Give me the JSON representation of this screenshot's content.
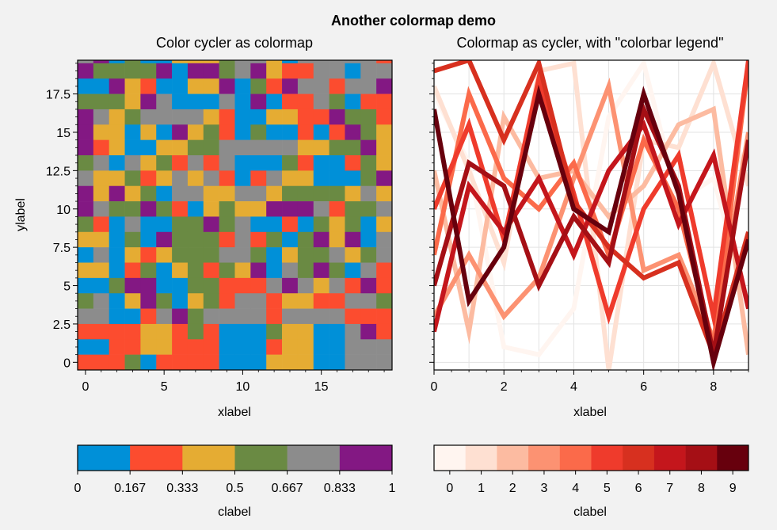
{
  "suptitle": "Another colormap demo",
  "chart_data": [
    {
      "type": "heatmap",
      "title": "Color cycler as colormap",
      "xlabel": "xlabel",
      "ylabel": "ylabel",
      "x_ticks": [
        "0",
        "5",
        "10",
        "15"
      ],
      "y_ticks": [
        "0",
        "2.5",
        "5",
        "7.5",
        "10",
        "12.5",
        "15",
        "17.5"
      ],
      "xlim": [
        -0.5,
        19.5
      ],
      "ylim": [
        -0.5,
        19.7
      ],
      "palette": [
        "#0090d8",
        "#fc4c2f",
        "#e5ac33",
        "#6a8a43",
        "#8c8c8c",
        "#831883"
      ],
      "values": [
        [
          0,
          0,
          1,
          0,
          0,
          0,
          5,
          0,
          3,
          5,
          3,
          5,
          2,
          4,
          4,
          1,
          5,
          0,
          0,
          0
        ],
        [
          0,
          0,
          1,
          1,
          1,
          5,
          1,
          3,
          3,
          4,
          1,
          0,
          1,
          3,
          3,
          3,
          3,
          4,
          4,
          1
        ],
        [
          5,
          0,
          1,
          1,
          1,
          2,
          1,
          4,
          1,
          2,
          1,
          3,
          3,
          3,
          3,
          3,
          4,
          3,
          5,
          3
        ],
        [
          2,
          2,
          2,
          0,
          0,
          0,
          0,
          0,
          2,
          2,
          1,
          4,
          5,
          4,
          2,
          1,
          1,
          3,
          3,
          4
        ],
        [
          4,
          1,
          0,
          0,
          5,
          1,
          0,
          0,
          2,
          1,
          4,
          4,
          1,
          4,
          2,
          2,
          0,
          3,
          3,
          2
        ],
        [
          4,
          5,
          0,
          3,
          0,
          0,
          2,
          2,
          2,
          3,
          4,
          4,
          2,
          0,
          4,
          4,
          4,
          4,
          4,
          1
        ],
        [
          5,
          3,
          3,
          3,
          3,
          5,
          0,
          5,
          5,
          3,
          4,
          5,
          2,
          1,
          1,
          4,
          4,
          0,
          4,
          4
        ],
        [
          0,
          0,
          5,
          2,
          1,
          0,
          0,
          2,
          2,
          5,
          0,
          3,
          1,
          5,
          4,
          4,
          1,
          4,
          4,
          5
        ],
        [
          3,
          3,
          3,
          2,
          5,
          4,
          0,
          0,
          0,
          4,
          0,
          5,
          0,
          1,
          1,
          4,
          3,
          0,
          1,
          1
        ],
        [
          5,
          4,
          2,
          3,
          4,
          4,
          4,
          4,
          2,
          1,
          0,
          0,
          2,
          2,
          1,
          1,
          5,
          3,
          3,
          1
        ],
        [
          5,
          2,
          2,
          0,
          2,
          0,
          5,
          2,
          3,
          1,
          0,
          3,
          0,
          0,
          1,
          0,
          1,
          5,
          3,
          2
        ],
        [
          5,
          1,
          2,
          0,
          0,
          2,
          2,
          3,
          3,
          4,
          4,
          4,
          4,
          4,
          2,
          2,
          3,
          3,
          5,
          2
        ],
        [
          3,
          4,
          0,
          4,
          2,
          3,
          1,
          4,
          1,
          4,
          0,
          0,
          0,
          3,
          1,
          0,
          0,
          1,
          3,
          2
        ],
        [
          4,
          2,
          2,
          3,
          1,
          2,
          4,
          2,
          4,
          1,
          0,
          1,
          4,
          2,
          2,
          0,
          0,
          0,
          3,
          5
        ],
        [
          5,
          2,
          5,
          2,
          3,
          0,
          4,
          4,
          2,
          2,
          4,
          4,
          2,
          3,
          3,
          3,
          3,
          2,
          4,
          2
        ],
        [
          5,
          4,
          3,
          3,
          5,
          3,
          1,
          0,
          2,
          3,
          2,
          2,
          5,
          5,
          5,
          4,
          1,
          3,
          3,
          4
        ],
        [
          3,
          1,
          0,
          4,
          0,
          0,
          3,
          3,
          5,
          3,
          4,
          0,
          0,
          1,
          0,
          3,
          2,
          3,
          0,
          2
        ],
        [
          2,
          2,
          0,
          3,
          0,
          5,
          3,
          3,
          3,
          1,
          4,
          1,
          3,
          0,
          3,
          5,
          2,
          5,
          0,
          4
        ],
        [
          0,
          4,
          0,
          2,
          1,
          2,
          3,
          3,
          3,
          4,
          4,
          3,
          0,
          2,
          3,
          3,
          4,
          2,
          3,
          4
        ],
        [
          2,
          2,
          0,
          1,
          3,
          0,
          2,
          3,
          1,
          3,
          2,
          5,
          0,
          4,
          3,
          5,
          3,
          0,
          4,
          1
        ],
        [
          0,
          0,
          3,
          5,
          5,
          0,
          0,
          3,
          3,
          1,
          1,
          1,
          4,
          5,
          4,
          2,
          4,
          1,
          5,
          1
        ],
        [
          3,
          4,
          0,
          2,
          5,
          3,
          0,
          2,
          3,
          1,
          4,
          4,
          1,
          2,
          2,
          1,
          1,
          4,
          4,
          3
        ],
        [
          4,
          4,
          0,
          0,
          1,
          4,
          5,
          3,
          4,
          4,
          4,
          4,
          1,
          4,
          4,
          4,
          4,
          1,
          1,
          1
        ],
        [
          1,
          1,
          1,
          1,
          2,
          2,
          1,
          3,
          1,
          0,
          0,
          0,
          3,
          2,
          2,
          0,
          0,
          4,
          5,
          1
        ],
        [
          0,
          0,
          1,
          1,
          2,
          2,
          1,
          1,
          1,
          0,
          0,
          0,
          1,
          2,
          2,
          0,
          0,
          4,
          4,
          4
        ],
        [
          1,
          1,
          1,
          3,
          0,
          1,
          1,
          1,
          1,
          0,
          0,
          0,
          2,
          2,
          2,
          0,
          0,
          4,
          4,
          4
        ]
      ],
      "colorbar": {
        "label": "clabel",
        "ticks": [
          "0",
          "0.167",
          "0.333",
          "0.5",
          "0.667",
          "0.833",
          "1"
        ]
      }
    },
    {
      "type": "line",
      "title": "Colormap as cycler, with \"colorbar legend\"",
      "xlabel": "xlabel",
      "x_ticks": [
        "0",
        "2",
        "4",
        "6",
        "8"
      ],
      "xlim": [
        0,
        9
      ],
      "ylim": [
        -0.5,
        19.7
      ],
      "x": [
        0,
        1,
        2,
        3,
        4,
        5,
        6,
        7,
        8,
        9
      ],
      "series": [
        {
          "color": "#fff5f0",
          "values": [
            17.5,
            13.0,
            1.0,
            0.5,
            3.5,
            16.0,
            19.5,
            10.5,
            12.0,
            3.5
          ]
        },
        {
          "color": "#fee0d2",
          "values": [
            18.0,
            12.5,
            6.5,
            19.0,
            19.5,
            -0.5,
            14.5,
            14.0,
            19.5,
            11.5
          ]
        },
        {
          "color": "#fcbba1",
          "values": [
            12.5,
            2.0,
            16.0,
            12.0,
            12.5,
            9.5,
            11.5,
            15.5,
            16.5,
            0.5
          ]
        },
        {
          "color": "#fc9272",
          "values": [
            3.0,
            7.0,
            3.0,
            5.5,
            12.0,
            18.0,
            6.0,
            7.0,
            1.5,
            15.0
          ]
        },
        {
          "color": "#fb6a4a",
          "values": [
            7.0,
            17.5,
            12.0,
            10.0,
            13.0,
            7.0,
            14.5,
            10.0,
            1.0,
            19.5
          ]
        },
        {
          "color": "#ef3b2c",
          "values": [
            10.0,
            15.5,
            8.0,
            18.5,
            11.0,
            3.0,
            10.0,
            13.5,
            3.0,
            19.7
          ]
        },
        {
          "color": "#d7301f",
          "values": [
            19.0,
            19.7,
            14.5,
            19.5,
            10.5,
            7.5,
            5.5,
            6.5,
            0.5,
            8.5
          ]
        },
        {
          "color": "#c4161c",
          "values": [
            2.0,
            11.5,
            8.5,
            12.0,
            7.0,
            12.5,
            15.5,
            9.0,
            13.5,
            3.5
          ]
        },
        {
          "color": "#a50f15",
          "values": [
            5.0,
            13.0,
            11.5,
            5.0,
            9.5,
            6.5,
            16.5,
            11.5,
            0.5,
            14.5
          ]
        },
        {
          "color": "#67000d",
          "values": [
            16.5,
            4.0,
            7.5,
            17.5,
            10.0,
            8.5,
            17.5,
            11.0,
            0.0,
            8.0
          ]
        }
      ],
      "colorbar": {
        "label": "clabel",
        "ticks": [
          "0",
          "1",
          "2",
          "3",
          "4",
          "5",
          "6",
          "7",
          "8",
          "9"
        ]
      }
    }
  ]
}
